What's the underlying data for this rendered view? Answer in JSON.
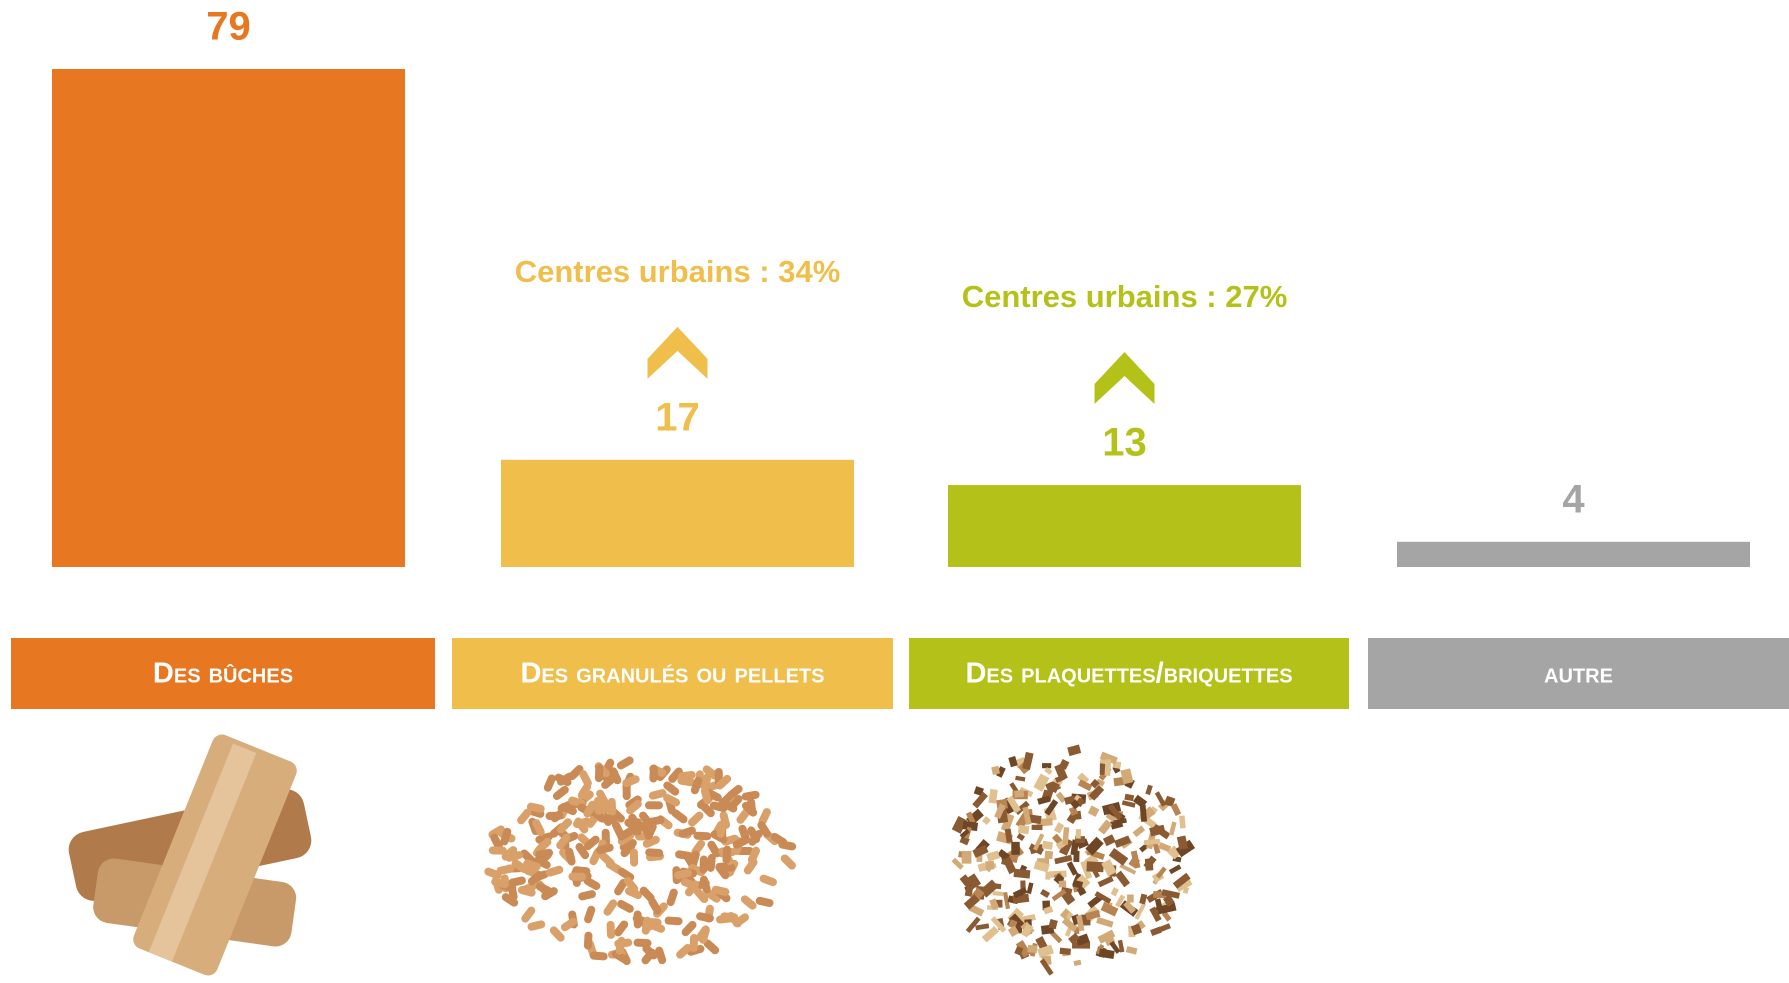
{
  "chart_data": {
    "type": "bar",
    "categories": [
      "Des bûches",
      "Des granulés ou pellets",
      "Des plaquettes/briquettes",
      "autre"
    ],
    "values": [
      79,
      17,
      13,
      4
    ],
    "colors": [
      "#e87722",
      "#f0be4b",
      "#b4c118",
      "#a5a5a5"
    ],
    "annotations": [
      null,
      "Centres urbains : 34%",
      "Centres urbains : 27%",
      null
    ]
  }
}
